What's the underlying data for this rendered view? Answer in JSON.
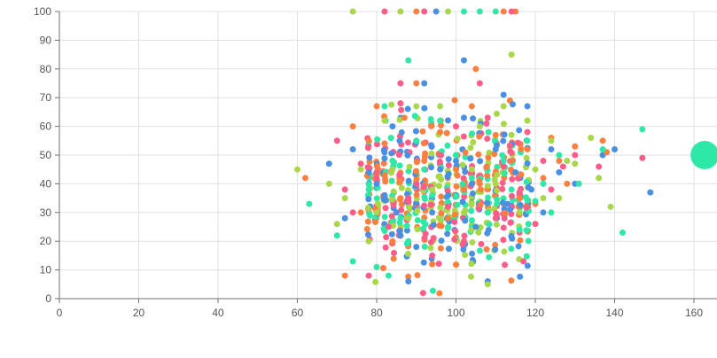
{
  "chart_data": {
    "type": "scatter",
    "title": "",
    "xlabel": "",
    "ylabel": "",
    "xlim": [
      0,
      160
    ],
    "ylim": [
      0,
      100
    ],
    "x_ticks": [
      0,
      20,
      40,
      60,
      80,
      100,
      120,
      140,
      160
    ],
    "y_ticks": [
      0,
      10,
      20,
      30,
      40,
      50,
      60,
      70,
      80,
      90,
      100
    ],
    "grid": true,
    "legend": "none",
    "colors": [
      "#4a90e2",
      "#ff7f3f",
      "#ff5c8a",
      "#a8d84a",
      "#2ee8a8"
    ],
    "series": [
      {
        "color": "#4a90e2",
        "points": [
          [
            68,
            47
          ],
          [
            72,
            28
          ],
          [
            74,
            52
          ],
          [
            78,
            44
          ],
          [
            80,
            40
          ],
          [
            82,
            36
          ],
          [
            84,
            60
          ],
          [
            85,
            30
          ],
          [
            86,
            22
          ],
          [
            88,
            6
          ],
          [
            90,
            18
          ],
          [
            92,
            75
          ],
          [
            94,
            30
          ],
          [
            95,
            100
          ],
          [
            96,
            45
          ],
          [
            98,
            36
          ],
          [
            100,
            48
          ],
          [
            102,
            83
          ],
          [
            102,
            63
          ],
          [
            104,
            40
          ],
          [
            105,
            25
          ],
          [
            108,
            6
          ],
          [
            110,
            52
          ],
          [
            112,
            71
          ],
          [
            113,
            33
          ],
          [
            115,
            44
          ],
          [
            118,
            67
          ],
          [
            119,
            38
          ],
          [
            122,
            30
          ],
          [
            124,
            52
          ],
          [
            126,
            44
          ],
          [
            130,
            40
          ],
          [
            137,
            50
          ],
          [
            140,
            52
          ],
          [
            149,
            37
          ]
        ]
      },
      {
        "color": "#ff7f3f",
        "points": [
          [
            62,
            42
          ],
          [
            72,
            8
          ],
          [
            74,
            60
          ],
          [
            76,
            30
          ],
          [
            78,
            55
          ],
          [
            80,
            67
          ],
          [
            82,
            43
          ],
          [
            84,
            20
          ],
          [
            86,
            35
          ],
          [
            87,
            63
          ],
          [
            90,
            75
          ],
          [
            90,
            100
          ],
          [
            92,
            48
          ],
          [
            94,
            12
          ],
          [
            96,
            58
          ],
          [
            98,
            28
          ],
          [
            100,
            45
          ],
          [
            102,
            38
          ],
          [
            104,
            67
          ],
          [
            105,
            80
          ],
          [
            106,
            40
          ],
          [
            108,
            30
          ],
          [
            110,
            57
          ],
          [
            112,
            100
          ],
          [
            114,
            48
          ],
          [
            115,
            100
          ],
          [
            116,
            35
          ],
          [
            118,
            52
          ],
          [
            120,
            33
          ],
          [
            122,
            42
          ],
          [
            124,
            56
          ],
          [
            126,
            48
          ],
          [
            128,
            40
          ],
          [
            130,
            53
          ],
          [
            137,
            55
          ],
          [
            138,
            51
          ]
        ]
      },
      {
        "color": "#ff5c8a",
        "points": [
          [
            70,
            55
          ],
          [
            72,
            38
          ],
          [
            74,
            30
          ],
          [
            76,
            47
          ],
          [
            78,
            8
          ],
          [
            80,
            42
          ],
          [
            82,
            100
          ],
          [
            83,
            25
          ],
          [
            84,
            48
          ],
          [
            86,
            75
          ],
          [
            86,
            68
          ],
          [
            88,
            35
          ],
          [
            90,
            40
          ],
          [
            92,
            100
          ],
          [
            94,
            15
          ],
          [
            96,
            50
          ],
          [
            98,
            32
          ],
          [
            100,
            60
          ],
          [
            102,
            20
          ],
          [
            104,
            44
          ],
          [
            106,
            75
          ],
          [
            108,
            63
          ],
          [
            110,
            28
          ],
          [
            112,
            46
          ],
          [
            114,
            100
          ],
          [
            116,
            37
          ],
          [
            117,
            13
          ],
          [
            118,
            58
          ],
          [
            120,
            26
          ],
          [
            122,
            48
          ],
          [
            124,
            38
          ],
          [
            127,
            46
          ],
          [
            130,
            50
          ],
          [
            136,
            46
          ],
          [
            147,
            49
          ]
        ]
      },
      {
        "color": "#a8d84a",
        "points": [
          [
            60,
            45
          ],
          [
            68,
            40
          ],
          [
            70,
            26
          ],
          [
            72,
            35
          ],
          [
            74,
            100
          ],
          [
            76,
            45
          ],
          [
            78,
            20
          ],
          [
            80,
            30
          ],
          [
            82,
            62
          ],
          [
            84,
            45
          ],
          [
            86,
            100
          ],
          [
            88,
            28
          ],
          [
            90,
            67
          ],
          [
            92,
            45
          ],
          [
            94,
            38
          ],
          [
            96,
            67
          ],
          [
            98,
            100
          ],
          [
            100,
            50
          ],
          [
            102,
            30
          ],
          [
            104,
            45
          ],
          [
            106,
            60
          ],
          [
            108,
            5
          ],
          [
            110,
            40
          ],
          [
            112,
            67
          ],
          [
            114,
            85
          ],
          [
            116,
            30
          ],
          [
            118,
            62
          ],
          [
            120,
            45
          ],
          [
            122,
            35
          ],
          [
            124,
            55
          ],
          [
            126,
            35
          ],
          [
            128,
            48
          ],
          [
            130,
            47
          ],
          [
            134,
            56
          ],
          [
            136,
            42
          ],
          [
            139,
            32
          ]
        ]
      },
      {
        "color": "#2ee8a8",
        "points": [
          [
            63,
            33
          ],
          [
            70,
            22
          ],
          [
            74,
            13
          ],
          [
            78,
            38
          ],
          [
            80,
            11
          ],
          [
            82,
            67
          ],
          [
            83,
            8
          ],
          [
            84,
            48
          ],
          [
            86,
            28
          ],
          [
            88,
            83
          ],
          [
            88,
            20
          ],
          [
            90,
            55
          ],
          [
            92,
            45
          ],
          [
            94,
            36
          ],
          [
            96,
            62
          ],
          [
            98,
            25
          ],
          [
            100,
            50
          ],
          [
            102,
            100
          ],
          [
            104,
            42
          ],
          [
            106,
            100
          ],
          [
            108,
            30
          ],
          [
            110,
            100
          ],
          [
            112,
            48
          ],
          [
            114,
            38
          ],
          [
            116,
            24
          ],
          [
            118,
            55
          ],
          [
            120,
            34
          ],
          [
            122,
            40
          ],
          [
            124,
            30
          ],
          [
            126,
            50
          ],
          [
            131,
            40
          ],
          [
            137,
            52
          ],
          [
            142,
            23
          ],
          [
            147,
            59
          ],
          [
            162.7,
            50
          ]
        ]
      }
    ],
    "dense_region": {
      "x_range": [
        74,
        120
      ],
      "y_range": [
        10,
        62
      ],
      "columns_x": [
        78,
        80,
        82,
        84,
        86,
        88,
        90,
        92,
        94,
        96,
        98,
        100,
        102,
        104,
        106,
        108,
        110,
        112,
        114,
        116,
        118
      ]
    }
  }
}
